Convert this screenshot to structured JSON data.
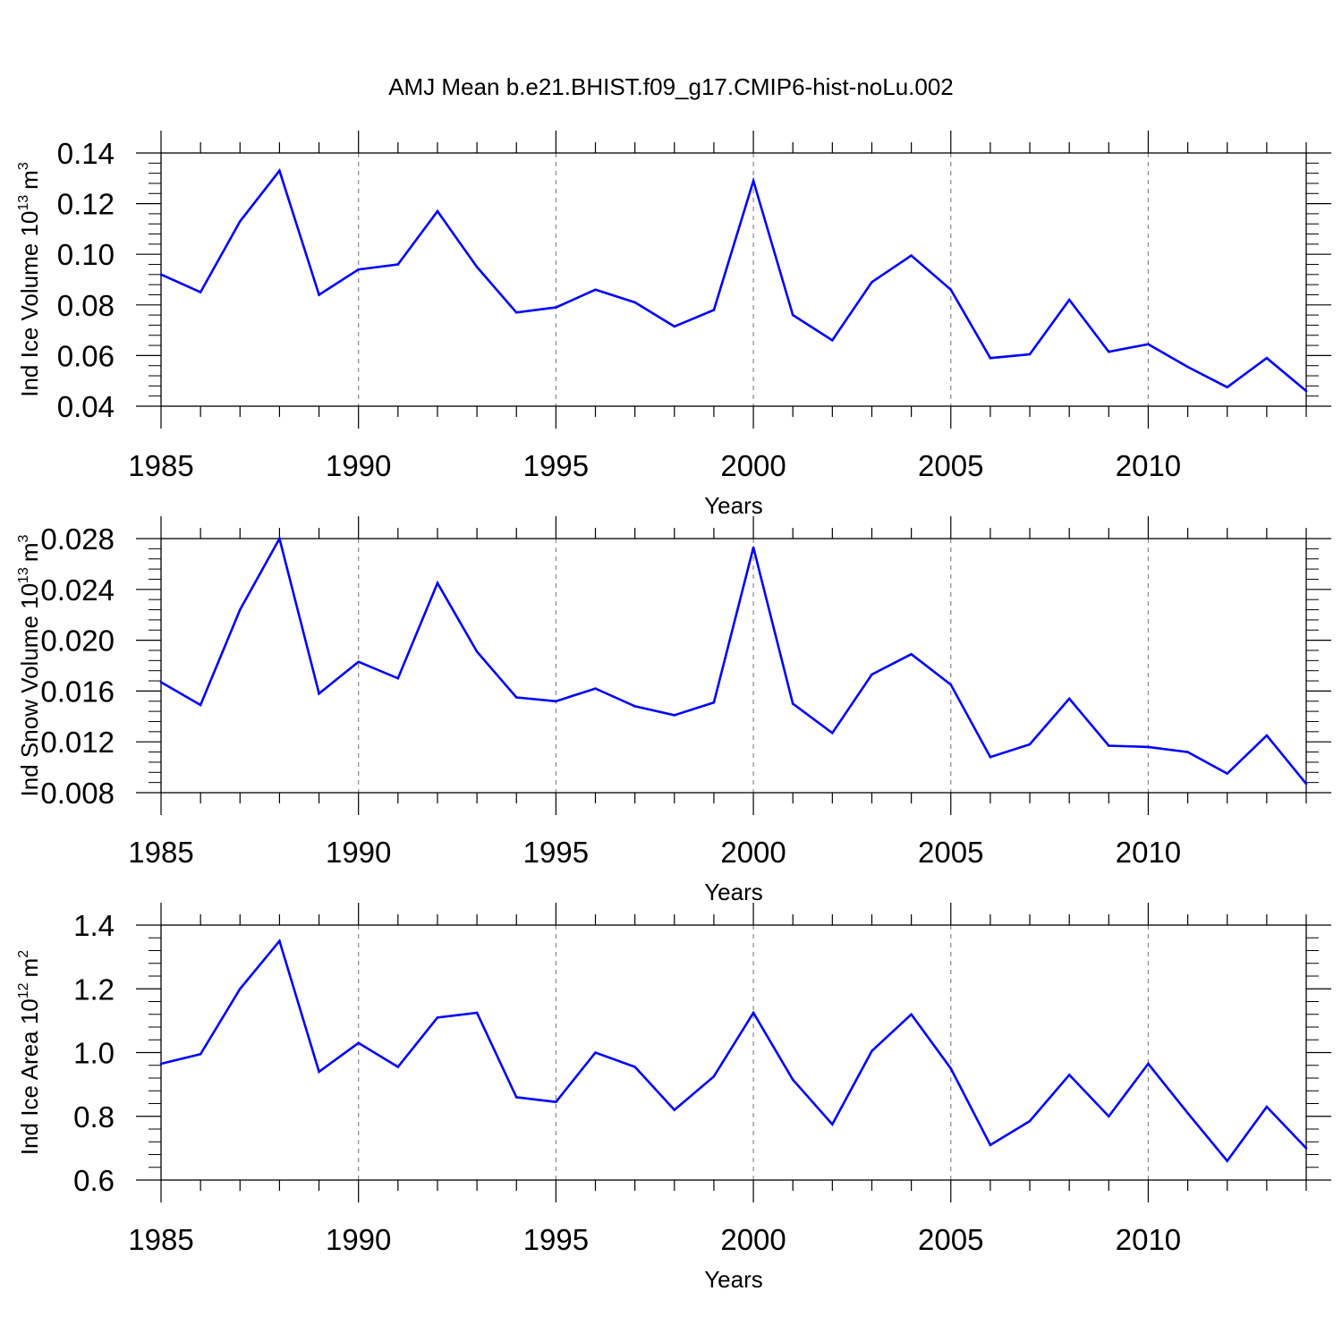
{
  "title": "AMJ Mean b.e21.BHIST.f09_g17.CMIP6-hist-noLu.002",
  "line_color": "#0000ff",
  "chart_data": [
    {
      "type": "line",
      "ylabel": "Ind Ice Volume 10",
      "ylabel_exp": "13",
      "ylabel_unit": "m",
      "ylabel_unit_exp": "3",
      "xlabel": "Years",
      "xlim": [
        1985,
        2014
      ],
      "ylim": [
        0.04,
        0.14
      ],
      "yticks": [
        "0.04",
        "0.06",
        "0.08",
        "0.10",
        "0.12",
        "0.14"
      ],
      "xticks": [
        "1985",
        "1990",
        "1995",
        "2000",
        "2005",
        "2010"
      ],
      "x": [
        1985,
        1986,
        1987,
        1988,
        1989,
        1990,
        1991,
        1992,
        1993,
        1994,
        1995,
        1996,
        1997,
        1998,
        1999,
        2000,
        2001,
        2002,
        2003,
        2004,
        2005,
        2006,
        2007,
        2008,
        2009,
        2010,
        2011,
        2012,
        2013,
        2014
      ],
      "values": [
        0.092,
        0.085,
        0.113,
        0.133,
        0.084,
        0.094,
        0.096,
        0.117,
        0.095,
        0.077,
        0.079,
        0.086,
        0.081,
        0.0715,
        0.078,
        0.129,
        0.076,
        0.066,
        0.089,
        0.0995,
        0.086,
        0.059,
        0.0605,
        0.082,
        0.0615,
        0.0645,
        0.0555,
        0.0475,
        0.059,
        0.046
      ]
    },
    {
      "type": "line",
      "ylabel": "Ind Snow Volume 10",
      "ylabel_exp": "13",
      "ylabel_unit": "m",
      "ylabel_unit_exp": "3",
      "xlabel": "Years",
      "xlim": [
        1985,
        2014
      ],
      "ylim": [
        0.008,
        0.028
      ],
      "yticks": [
        "0.008",
        "0.012",
        "0.016",
        "0.020",
        "0.024",
        "0.028"
      ],
      "xticks": [
        "1985",
        "1990",
        "1995",
        "2000",
        "2005",
        "2010"
      ],
      "x": [
        1985,
        1986,
        1987,
        1988,
        1989,
        1990,
        1991,
        1992,
        1993,
        1994,
        1995,
        1996,
        1997,
        1998,
        1999,
        2000,
        2001,
        2002,
        2003,
        2004,
        2005,
        2006,
        2007,
        2008,
        2009,
        2010,
        2011,
        2012,
        2013,
        2014
      ],
      "values": [
        0.0167,
        0.0149,
        0.0224,
        0.028,
        0.0158,
        0.0183,
        0.017,
        0.0245,
        0.0191,
        0.0155,
        0.0152,
        0.0162,
        0.0148,
        0.0141,
        0.0151,
        0.0273,
        0.015,
        0.0127,
        0.0173,
        0.0189,
        0.0165,
        0.0108,
        0.0118,
        0.0154,
        0.0117,
        0.0116,
        0.0112,
        0.0095,
        0.0125,
        0.0087
      ]
    },
    {
      "type": "line",
      "ylabel": "Ind Ice Area 10",
      "ylabel_exp": "12",
      "ylabel_unit": "m",
      "ylabel_unit_exp": "2",
      "xlabel": "Years",
      "xlim": [
        1985,
        2014
      ],
      "ylim": [
        0.6,
        1.4
      ],
      "yticks": [
        "0.6",
        "0.8",
        "1.0",
        "1.2",
        "1.4"
      ],
      "xticks": [
        "1985",
        "1990",
        "1995",
        "2000",
        "2005",
        "2010"
      ],
      "x": [
        1985,
        1986,
        1987,
        1988,
        1989,
        1990,
        1991,
        1992,
        1993,
        1994,
        1995,
        1996,
        1997,
        1998,
        1999,
        2000,
        2001,
        2002,
        2003,
        2004,
        2005,
        2006,
        2007,
        2008,
        2009,
        2010,
        2011,
        2012,
        2013,
        2014
      ],
      "values": [
        0.965,
        0.995,
        1.2,
        1.35,
        0.94,
        1.03,
        0.955,
        1.11,
        1.125,
        0.86,
        0.845,
        1.0,
        0.955,
        0.82,
        0.925,
        1.125,
        0.915,
        0.775,
        1.005,
        1.12,
        0.95,
        0.71,
        0.785,
        0.93,
        0.8,
        0.965,
        0.81,
        0.66,
        0.83,
        0.7
      ]
    }
  ]
}
